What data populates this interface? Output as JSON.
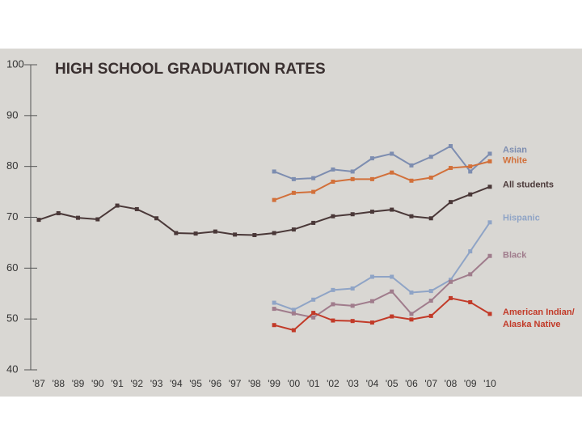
{
  "chart_data": {
    "type": "line",
    "title": "HIGH SCHOOL GRADUATION RATES",
    "categories": [
      "'87",
      "'88",
      "'89",
      "'90",
      "'91",
      "'92",
      "'93",
      "'94",
      "'95",
      "'96",
      "'97",
      "'98",
      "'99",
      "'00",
      "'01",
      "'02",
      "'03",
      "'04",
      "'05",
      "'06",
      "'07",
      "'08",
      "'09",
      "'10"
    ],
    "series": [
      {
        "name": "Asian",
        "color": "#7d8db0",
        "values": [
          null,
          null,
          null,
          null,
          null,
          null,
          null,
          null,
          null,
          null,
          null,
          null,
          79,
          77.5,
          77.7,
          79.4,
          79,
          81.6,
          82.5,
          80.2,
          81.9,
          84,
          79,
          82.5
        ]
      },
      {
        "name": "White",
        "color": "#d2703a",
        "values": [
          null,
          null,
          null,
          null,
          null,
          null,
          null,
          null,
          null,
          null,
          null,
          null,
          73.4,
          74.8,
          75,
          77,
          77.5,
          77.5,
          78.8,
          77.2,
          77.8,
          79.7,
          80,
          81
        ]
      },
      {
        "name": "All students",
        "color": "#4a3838",
        "values": [
          69.5,
          70.8,
          69.9,
          69.6,
          72.3,
          71.6,
          69.8,
          66.9,
          66.8,
          67.2,
          66.6,
          66.5,
          66.9,
          67.6,
          68.9,
          70.2,
          70.6,
          71.1,
          71.5,
          70.2,
          69.8,
          73,
          74.5,
          76
        ]
      },
      {
        "name": "Hispanic",
        "color": "#8fa4c6",
        "values": [
          null,
          null,
          null,
          null,
          null,
          null,
          null,
          null,
          null,
          null,
          null,
          null,
          53.2,
          51.8,
          53.8,
          55.7,
          56,
          58.3,
          58.3,
          55.2,
          55.5,
          57.7,
          63.3,
          69
        ]
      },
      {
        "name": "Black",
        "color": "#a07c8c",
        "values": [
          null,
          null,
          null,
          null,
          null,
          null,
          null,
          null,
          null,
          null,
          null,
          null,
          52,
          51.1,
          50.3,
          52.9,
          52.6,
          53.5,
          55.4,
          51,
          53.6,
          57.3,
          58.8,
          62.4
        ]
      },
      {
        "name": "American Indian/ Alaska Native",
        "color": "#c23a28",
        "values": [
          null,
          null,
          null,
          null,
          null,
          null,
          null,
          null,
          null,
          null,
          null,
          null,
          48.8,
          47.8,
          51.2,
          49.7,
          49.6,
          49.3,
          50.5,
          49.9,
          50.6,
          54.1,
          53.3,
          51
        ]
      }
    ],
    "ylim": [
      40,
      100
    ],
    "yticks": [
      40,
      50,
      60,
      70,
      80,
      90,
      100
    ]
  }
}
